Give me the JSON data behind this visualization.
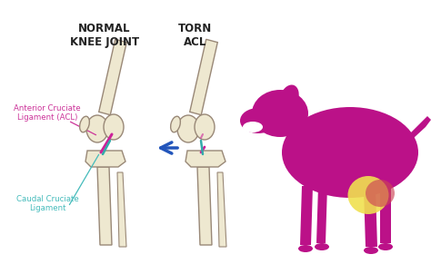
{
  "background_color": "#ffffff",
  "title_normal": "NORMAL\nKNEE JOINT",
  "title_torn": "TORN\nACL",
  "title_fontsize": 8.5,
  "title_color": "#222222",
  "acl_label": "Anterior Cruciate\nLigament (ACL)",
  "ccl_label": "Caudal Cruciate\nLigament",
  "label_color_acl": "#cc3399",
  "label_color_ccl": "#44bbbb",
  "arrow_color": "#2255bb",
  "dog_color": "#bb1188",
  "knee_highlight_color": "#f0e050",
  "knee_highlight_alpha": 0.9,
  "knee_overlap_color": "#cc4455",
  "knee_overlap_alpha": 0.65,
  "bone_color": "#eee8d0",
  "bone_edge_color": "#998877",
  "ligament_acl_color": "#cc2299",
  "ligament_ccl_color": "#33aaaa"
}
